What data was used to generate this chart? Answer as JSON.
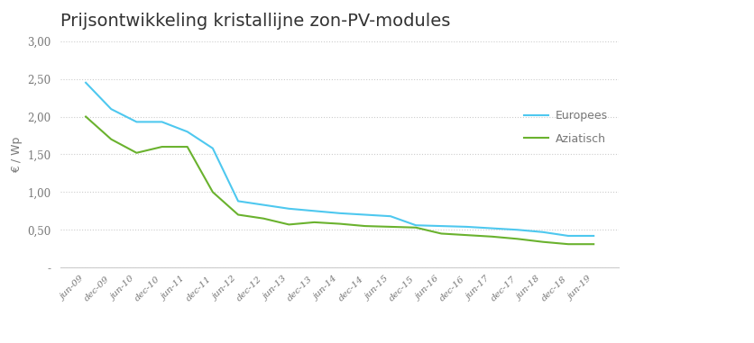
{
  "title": "Prijsontwikkeling kristallijne zon-PV-modules",
  "ylabel": "€ / Wp",
  "xlabels": [
    "jun-09",
    "dec-09",
    "jun-10",
    "dec-10",
    "jun-11",
    "dec-11",
    "jun-12",
    "dec-12",
    "jun-13",
    "dec-13",
    "jun-14",
    "dec-14",
    "jun-15",
    "dec-15",
    "jun-16",
    "dec-16",
    "jun-17",
    "dec-17",
    "jun-18",
    "dec-18",
    "jun-19"
  ],
  "europees": [
    2.45,
    2.1,
    1.93,
    1.93,
    1.8,
    1.58,
    0.88,
    0.83,
    0.78,
    0.75,
    0.72,
    0.7,
    0.68,
    0.56,
    0.55,
    0.54,
    0.52,
    0.5,
    0.47,
    0.42,
    0.42
  ],
  "aziatisch": [
    2.0,
    1.7,
    1.52,
    1.6,
    1.6,
    1.0,
    0.7,
    0.65,
    0.57,
    0.6,
    0.58,
    0.55,
    0.54,
    0.53,
    0.45,
    0.43,
    0.41,
    0.38,
    0.34,
    0.31,
    0.31
  ],
  "europees_color": "#4ec8ef",
  "aziatisch_color": "#6ab22e",
  "grid_color": "#cccccc",
  "background_color": "#ffffff",
  "title_color": "#333333",
  "label_color": "#777777",
  "ylim": [
    0,
    3.0
  ],
  "yticks": [
    0,
    0.5,
    1.0,
    1.5,
    2.0,
    2.5,
    3.0
  ],
  "ytick_labels": [
    "-",
    "0,50",
    "1,00",
    "1,50",
    "2,00",
    "2,50",
    "3,00"
  ],
  "legend_entries": [
    "Europees",
    "Aziatisch"
  ]
}
